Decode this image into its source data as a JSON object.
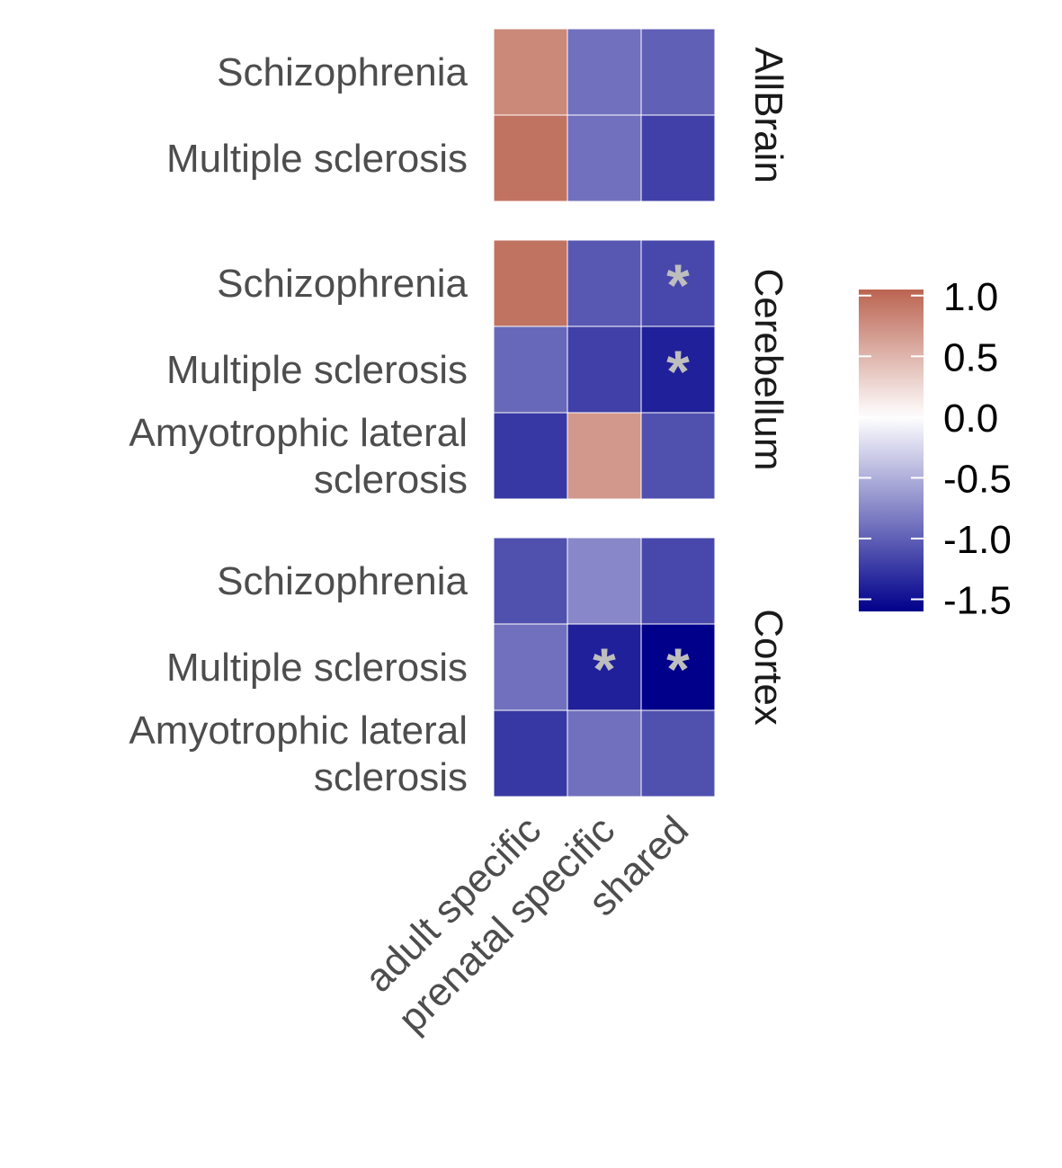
{
  "chart_data": {
    "type": "heatmap",
    "x_categories": [
      "adult specific",
      "prenatal specific",
      "shared"
    ],
    "panels": [
      {
        "name": "AllBrain",
        "rows": [
          {
            "label": [
              "Schizophrenia"
            ],
            "values": [
              0.8,
              -0.9,
              -1.0
            ],
            "significant": [
              false,
              false,
              false
            ]
          },
          {
            "label": [
              "Multiple sclerosis"
            ],
            "values": [
              0.95,
              -0.9,
              -1.2
            ],
            "significant": [
              false,
              false,
              false
            ]
          }
        ]
      },
      {
        "name": "Cerebellum",
        "rows": [
          {
            "label": [
              "Schizophrenia"
            ],
            "values": [
              0.95,
              -1.05,
              -1.15
            ],
            "significant": [
              false,
              false,
              true
            ]
          },
          {
            "label": [
              "Multiple sclerosis"
            ],
            "values": [
              -0.95,
              -1.2,
              -1.4
            ],
            "significant": [
              false,
              false,
              true
            ]
          },
          {
            "label": [
              "Amyotrophic lateral",
              "sclerosis"
            ],
            "values": [
              -1.25,
              0.7,
              -1.1
            ],
            "significant": [
              false,
              false,
              false
            ]
          }
        ]
      },
      {
        "name": "Cortex",
        "rows": [
          {
            "label": [
              "Schizophrenia"
            ],
            "values": [
              -1.1,
              -0.75,
              -1.15
            ],
            "significant": [
              false,
              false,
              false
            ]
          },
          {
            "label": [
              "Multiple sclerosis"
            ],
            "values": [
              -0.9,
              -1.4,
              -1.6
            ],
            "significant": [
              false,
              true,
              true
            ]
          },
          {
            "label": [
              "Amyotrophic lateral",
              "sclerosis"
            ],
            "values": [
              -1.25,
              -0.9,
              -1.1
            ],
            "significant": [
              false,
              false,
              false
            ]
          }
        ]
      }
    ],
    "significance_marker": "*",
    "legend": {
      "position": "right",
      "ticks": [
        "1.0",
        "0.5",
        "0.0",
        "-0.5",
        "-1.0",
        "-1.5"
      ],
      "tick_values": [
        1.0,
        0.5,
        0.0,
        -0.5,
        -1.0,
        -1.5
      ],
      "range": [
        -1.6,
        1.05
      ]
    },
    "colors": {
      "high": "#bb6451",
      "mid": "#ffffff",
      "low": "#00008b",
      "marker": "#bebebe",
      "grid": "#ffffff"
    }
  }
}
